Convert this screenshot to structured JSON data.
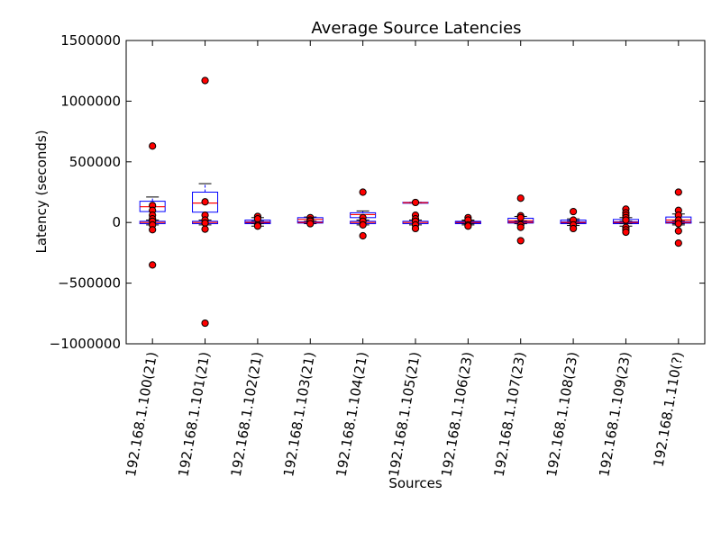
{
  "chart_data": {
    "type": "box",
    "title": "Average Source Latencies",
    "xlabel": "Sources",
    "ylabel": "Latency (seconds)",
    "ylim": [
      -1000000,
      1500000
    ],
    "yticks": [
      -1000000,
      -500000,
      0,
      500000,
      1000000,
      1500000
    ],
    "ytick_labels": [
      "−1000000",
      "−500000",
      "0",
      "500000",
      "1000000",
      "1500000"
    ],
    "grid": false,
    "colors": {
      "box": "#0000ff",
      "median": "#ff0000",
      "flier_fill": "#ff0000",
      "flier_edge": "#000000",
      "axis": "#000000"
    },
    "categories": [
      "192.168.1.100(21)",
      "192.168.1.101(21)",
      "192.168.1.102(21)",
      "192.168.1.103(21)",
      "192.168.1.104(21)",
      "192.168.1.105(21)",
      "192.168.1.106(23)",
      "192.168.1.107(23)",
      "192.168.1.108(23)",
      "192.168.1.109(23)",
      "192.168.1.110(?)"
    ],
    "boxes": [
      {
        "main": {
          "q1": 90000,
          "median": 130000,
          "q3": 175000,
          "whislo": 20000,
          "whishi": 210000
        },
        "inner": {
          "q1": -10000,
          "median": 0,
          "q3": 10000,
          "whislo": -20000,
          "whishi": 20000
        },
        "fliers": [
          630000,
          140000,
          100000,
          60000,
          30000,
          10000,
          -20000,
          -60000,
          -350000
        ]
      },
      {
        "main": {
          "q1": 85000,
          "median": 160000,
          "q3": 250000,
          "whislo": 20000,
          "whishi": 320000
        },
        "inner": {
          "q1": -10000,
          "median": 0,
          "q3": 10000,
          "whislo": -20000,
          "whishi": 20000
        },
        "fliers": [
          1170000,
          170000,
          60000,
          20000,
          -5000,
          -55000,
          -830000
        ]
      },
      {
        "main": {
          "q1": -10000,
          "median": 5000,
          "q3": 20000,
          "whislo": -30000,
          "whishi": 40000
        },
        "inner": {
          "q1": -5000,
          "median": 0,
          "q3": 5000,
          "whislo": -10000,
          "whishi": 10000
        },
        "fliers": [
          50000,
          30000,
          -20000,
          -30000
        ]
      },
      {
        "main": {
          "q1": 5000,
          "median": 25000,
          "q3": 40000,
          "whislo": -5000,
          "whishi": 45000
        },
        "inner": {
          "q1": -5000,
          "median": 0,
          "q3": 5000,
          "whislo": -10000,
          "whishi": 10000
        },
        "fliers": [
          40000,
          20000,
          10000,
          -10000
        ]
      },
      {
        "main": {
          "q1": 40000,
          "median": 65000,
          "q3": 80000,
          "whislo": 20000,
          "whishi": 95000
        },
        "inner": {
          "q1": -10000,
          "median": 0,
          "q3": 10000,
          "whislo": -20000,
          "whishi": 20000
        },
        "fliers": [
          250000,
          40000,
          10000,
          -20000,
          -110000
        ]
      },
      {
        "main": {
          "q1": 160000,
          "median": 163000,
          "q3": 166000,
          "whislo": 160000,
          "whishi": 166000
        },
        "inner": {
          "q1": -10000,
          "median": 0,
          "q3": 10000,
          "whislo": -20000,
          "whishi": 20000
        },
        "fliers": [
          165000,
          60000,
          30000,
          10000,
          -20000,
          -50000
        ]
      },
      {
        "main": {
          "q1": -10000,
          "median": 0,
          "q3": 10000,
          "whislo": -20000,
          "whishi": 20000
        },
        "inner": {
          "q1": -5000,
          "median": 0,
          "q3": 5000,
          "whislo": -10000,
          "whishi": 10000
        },
        "fliers": [
          40000,
          20000,
          -20000,
          -30000
        ]
      },
      {
        "main": {
          "q1": 0,
          "median": 15000,
          "q3": 35000,
          "whislo": -10000,
          "whishi": 50000
        },
        "inner": {
          "q1": -5000,
          "median": 0,
          "q3": 5000,
          "whislo": -10000,
          "whishi": 10000
        },
        "fliers": [
          200000,
          55000,
          40000,
          -20000,
          -40000,
          -150000
        ]
      },
      {
        "main": {
          "q1": -10000,
          "median": 0,
          "q3": 20000,
          "whislo": -25000,
          "whishi": 30000
        },
        "inner": {
          "q1": -5000,
          "median": 0,
          "q3": 5000,
          "whislo": -10000,
          "whishi": 10000
        },
        "fliers": [
          90000,
          20000,
          -20000,
          -50000
        ]
      },
      {
        "main": {
          "q1": -10000,
          "median": 5000,
          "q3": 25000,
          "whislo": -30000,
          "whishi": 40000
        },
        "inner": {
          "q1": -5000,
          "median": 0,
          "q3": 5000,
          "whislo": -10000,
          "whishi": 10000
        },
        "fliers": [
          110000,
          80000,
          60000,
          40000,
          20000,
          -40000,
          -60000,
          -80000
        ]
      },
      {
        "main": {
          "q1": -5000,
          "median": 20000,
          "q3": 45000,
          "whislo": -20000,
          "whishi": 70000
        },
        "inner": {
          "q1": -5000,
          "median": 0,
          "q3": 5000,
          "whislo": -10000,
          "whishi": 10000
        },
        "fliers": [
          250000,
          100000,
          60000,
          20000,
          -10000,
          -70000,
          -170000
        ]
      }
    ]
  }
}
